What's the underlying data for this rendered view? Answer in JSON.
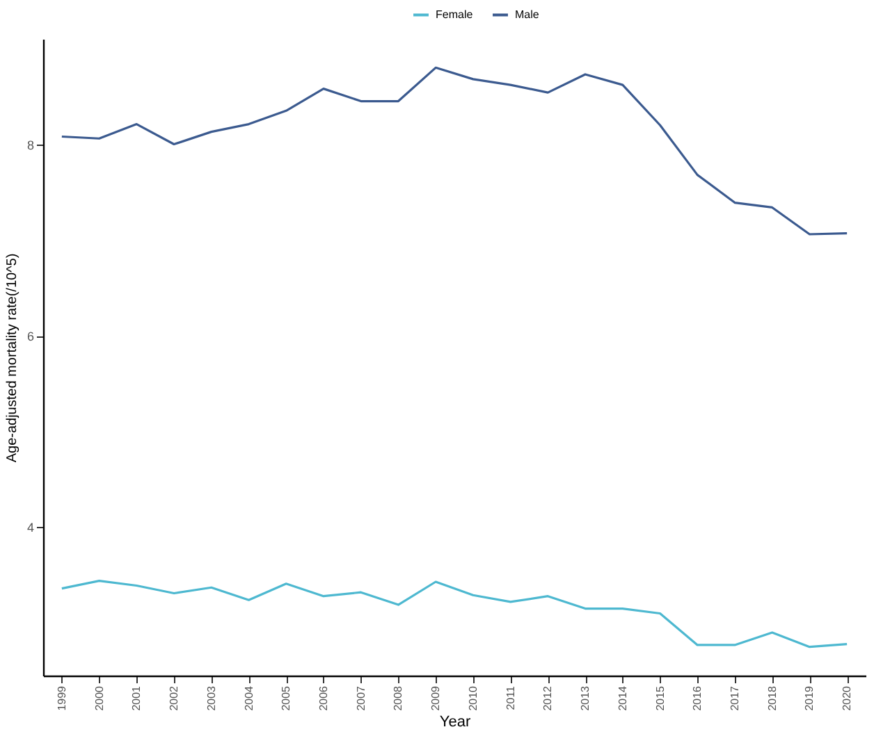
{
  "chart_data": {
    "type": "line",
    "xlabel": "Year",
    "ylabel": "Age-adjusted mortality rate(/10^5)",
    "categories": [
      "1999",
      "2000",
      "2001",
      "2002",
      "2003",
      "2004",
      "2005",
      "2006",
      "2007",
      "2008",
      "2009",
      "2010",
      "2011",
      "2012",
      "2013",
      "2014",
      "2015",
      "2016",
      "2017",
      "2018",
      "2019",
      "2020"
    ],
    "series": [
      {
        "name": "Female",
        "color": "#4db8d0",
        "values": [
          3.36,
          3.44,
          3.39,
          3.31,
          3.37,
          3.24,
          3.41,
          3.28,
          3.32,
          3.19,
          3.43,
          3.29,
          3.22,
          3.28,
          3.15,
          3.15,
          3.1,
          2.77,
          2.77,
          2.9,
          2.75,
          2.78
        ]
      },
      {
        "name": "Male",
        "color": "#3b5a8f",
        "values": [
          8.08,
          8.06,
          8.21,
          8.0,
          8.13,
          8.21,
          8.35,
          8.58,
          8.45,
          8.45,
          8.8,
          8.68,
          8.62,
          8.54,
          8.73,
          8.62,
          8.2,
          7.68,
          7.39,
          7.34,
          7.06,
          7.07
        ]
      }
    ],
    "ylim": [
      2.45,
      9.1
    ],
    "yticks": [
      4,
      6,
      8
    ],
    "grid": false,
    "legend": "top"
  }
}
